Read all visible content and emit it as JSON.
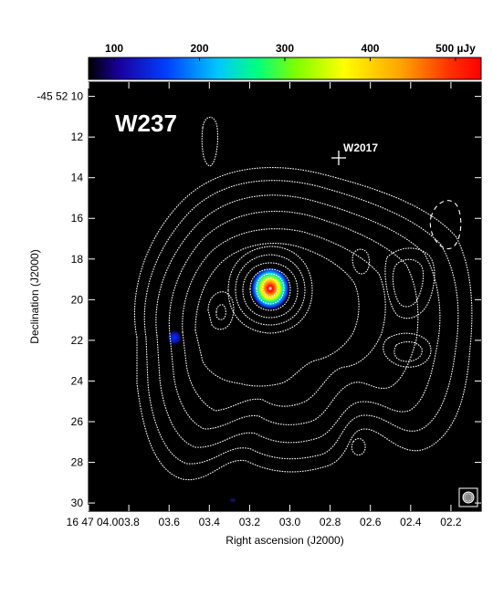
{
  "figure": {
    "field_label": "W237",
    "marker_label": "W2017",
    "colorbar": {
      "ticks": [
        "100",
        "200",
        "300",
        "400",
        "500 µJy"
      ],
      "tick_values": [
        100,
        200,
        300,
        400,
        500
      ],
      "range": [
        70,
        530
      ],
      "colormap": [
        "#000000",
        "#1a00a0",
        "#0040ff",
        "#00c8ff",
        "#00ff80",
        "#80ff00",
        "#ffff00",
        "#ffa000",
        "#ff3000",
        "#ff0000"
      ]
    },
    "x_axis": {
      "label": "Right ascension (J2000)",
      "tick_labels": [
        "16 47 04.0",
        "03.8",
        "03.6",
        "03.4",
        "03.2",
        "03.0",
        "02.8",
        "02.6",
        "02.4",
        "02.2"
      ],
      "tick_values": [
        4.0,
        3.8,
        3.6,
        3.4,
        3.2,
        3.0,
        2.8,
        2.6,
        2.4,
        2.2
      ],
      "range": [
        4.0,
        2.05
      ]
    },
    "y_axis": {
      "label": "Declination (J2000)",
      "tick_labels": [
        "-45 52 10",
        "12",
        "14",
        "16",
        "18",
        "20",
        "22",
        "24",
        "26",
        "28",
        "30"
      ],
      "tick_values": [
        10,
        12,
        14,
        16,
        18,
        20,
        22,
        24,
        26,
        28,
        30
      ],
      "range": [
        9.3,
        30.4
      ]
    },
    "colors": {
      "background": "#000000",
      "contour": "#ffffff",
      "frame": "#000000"
    }
  }
}
